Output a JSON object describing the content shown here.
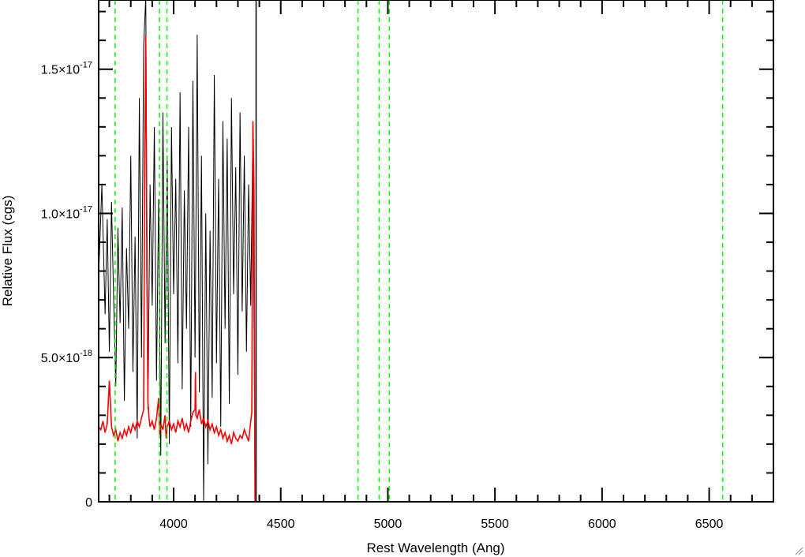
{
  "chart_data": {
    "type": "line",
    "title": "",
    "xlabel": "Rest Wavelength (Ang)",
    "ylabel": "Relative Flux (cgs)",
    "xlim": [
      3650,
      6800
    ],
    "ylim": [
      0,
      1.74e-17
    ],
    "x_ticks": [
      {
        "value": 4000,
        "label": "4000"
      },
      {
        "value": 4500,
        "label": "4500"
      },
      {
        "value": 5000,
        "label": "5000"
      },
      {
        "value": 5500,
        "label": "5500"
      },
      {
        "value": 6000,
        "label": "6000"
      },
      {
        "value": 6500,
        "label": "6500"
      }
    ],
    "y_ticks": [
      {
        "value": 0,
        "mantissa": "0",
        "exponent": ""
      },
      {
        "value": 5e-18,
        "mantissa": "5.0×10",
        "exponent": "-18"
      },
      {
        "value": 1e-17,
        "mantissa": "1.0×10",
        "exponent": "-17"
      },
      {
        "value": 1.5e-17,
        "mantissa": "1.5×10",
        "exponent": "-17"
      }
    ],
    "x_minor_step": 100,
    "y_minor_step": 1e-18,
    "grid": false,
    "series": [
      {
        "color": "#000000",
        "style": "solid",
        "x": [
          3650,
          3665,
          3680,
          3690,
          3700,
          3710,
          3720,
          3730,
          3740,
          3750,
          3760,
          3770,
          3780,
          3790,
          3800,
          3810,
          3820,
          3830,
          3840,
          3850,
          3860,
          3870,
          3880,
          3890,
          3900,
          3910,
          3920,
          3930,
          3940,
          3950,
          3960,
          3970,
          3980,
          3990,
          4000,
          4010,
          4020,
          4030,
          4040,
          4050,
          4060,
          4070,
          4080,
          4090,
          4100,
          4110,
          4120,
          4130,
          4140,
          4150,
          4160,
          4170,
          4180,
          4190,
          4200,
          4210,
          4220,
          4230,
          4240,
          4250,
          4260,
          4270,
          4280,
          4290,
          4300,
          4310,
          4320,
          4330,
          4340,
          4350,
          4360,
          4370,
          4380,
          6800
        ],
        "y": [
          7.8e-18,
          1.1e-17,
          6.5e-18,
          9.8e-18,
          5.2e-18,
          1.04e-17,
          7e-18,
          4e-18,
          9.5e-18,
          6.2e-18,
          1.02e-17,
          3.5e-18,
          8.8e-18,
          6e-18,
          1.2e-17,
          4.5e-18,
          9.2e-18,
          2.2e-18,
          1.4e-17,
          5e-18,
          1.58e-17,
          1.75e-17,
          3.2e-18,
          1.1e-17,
          6.8e-18,
          1.3e-17,
          4.2e-18,
          1.05e-17,
          1.6e-18,
          1.35e-17,
          5.5e-18,
          1.2e-17,
          2e-18,
          1.3e-17,
          7.2e-18,
          1.12e-17,
          4.8e-18,
          1.42e-17,
          3.9e-18,
          1.08e-17,
          6e-18,
          1.3e-17,
          2.6e-18,
          1.46e-17,
          5e-18,
          1.62e-17,
          3.8e-18,
          1.2e-17,
          0,
          1e-17,
          1.3e-18,
          9.4e-18,
          3.6e-18,
          1.48e-17,
          4.8e-18,
          1.12e-17,
          2.6e-18,
          1.32e-17,
          6e-18,
          1.26e-17,
          3.4e-18,
          1.4e-17,
          7.2e-18,
          1.16e-17,
          4.4e-18,
          1.35e-17,
          6.6e-18,
          1.2e-17,
          5.2e-18,
          1.1e-17,
          6.8e-18,
          1.3e-17,
          0,
          0
        ]
      },
      {
        "color": "#ff0000",
        "style": "solid",
        "x": [
          3650,
          3660,
          3670,
          3680,
          3690,
          3700,
          3710,
          3720,
          3730,
          3740,
          3750,
          3760,
          3770,
          3780,
          3790,
          3800,
          3810,
          3820,
          3830,
          3840,
          3850,
          3860,
          3865,
          3870,
          3875,
          3880,
          3885,
          3890,
          3900,
          3910,
          3920,
          3930,
          3935,
          3940,
          3950,
          3960,
          3965,
          3970,
          3980,
          3990,
          4000,
          4010,
          4020,
          4030,
          4040,
          4050,
          4060,
          4070,
          4080,
          4090,
          4100,
          4102,
          4104,
          4110,
          4120,
          4130,
          4140,
          4150,
          4160,
          4170,
          4180,
          4190,
          4200,
          4210,
          4220,
          4230,
          4240,
          4250,
          4260,
          4270,
          4280,
          4290,
          4300,
          4310,
          4320,
          4330,
          4340,
          4350,
          4360,
          4365,
          4370,
          4375,
          4380,
          6800
        ],
        "y": [
          2.6e-18,
          2.5e-18,
          2.8e-18,
          2.4e-18,
          2.7e-18,
          4.2e-18,
          2.6e-18,
          2.3e-18,
          2.5e-18,
          2.1e-18,
          2.4e-18,
          2.2e-18,
          2.5e-18,
          2.3e-18,
          2.6e-18,
          2.4e-18,
          2.7e-18,
          2.5e-18,
          2.8e-18,
          2.6e-18,
          2.9e-18,
          3.2e-18,
          1.2e-17,
          1.62e-17,
          8e-18,
          3.5e-18,
          2.9e-18,
          2.6e-18,
          2.8e-18,
          2.5e-18,
          2.9e-18,
          3.6e-18,
          2.3e-18,
          2.7e-18,
          2.5e-18,
          3e-18,
          2.2e-18,
          2.6e-18,
          2.8e-18,
          2.5e-18,
          2.7e-18,
          2.4e-18,
          2.8e-18,
          2.6e-18,
          2.9e-18,
          2.5e-18,
          2.7e-18,
          2.4e-18,
          2.8e-18,
          3.1e-18,
          3.2e-18,
          4.5e-18,
          3e-18,
          2.9e-18,
          3.2e-18,
          2.7e-18,
          2.9e-18,
          2.6e-18,
          2.8e-18,
          2.5e-18,
          2.7e-18,
          2.4e-18,
          2.6e-18,
          2.3e-18,
          2.5e-18,
          2.2e-18,
          2.4e-18,
          2.1e-18,
          2.3e-18,
          2e-18,
          2.4e-18,
          2.2e-18,
          2.1e-18,
          2.3e-18,
          2.2e-18,
          2.5e-18,
          2.3e-18,
          2.1e-18,
          2.8e-18,
          3.1e-18,
          1.32e-17,
          1.1e-17,
          0,
          0
        ]
      }
    ],
    "vertical_lines": [
      {
        "x": 3727,
        "color": "#00ff00",
        "style": "dashed"
      },
      {
        "x": 3934,
        "color": "#00ff00",
        "style": "dashed"
      },
      {
        "x": 3969,
        "color": "#00ff00",
        "style": "dashed"
      },
      {
        "x": 4861,
        "color": "#00ff00",
        "style": "dashed"
      },
      {
        "x": 4959,
        "color": "#00ff00",
        "style": "dashed"
      },
      {
        "x": 5007,
        "color": "#00ff00",
        "style": "dashed"
      },
      {
        "x": 6563,
        "color": "#00ff00",
        "style": "dashed"
      },
      {
        "x": 4385,
        "color": "#000000",
        "style": "solid"
      }
    ]
  }
}
